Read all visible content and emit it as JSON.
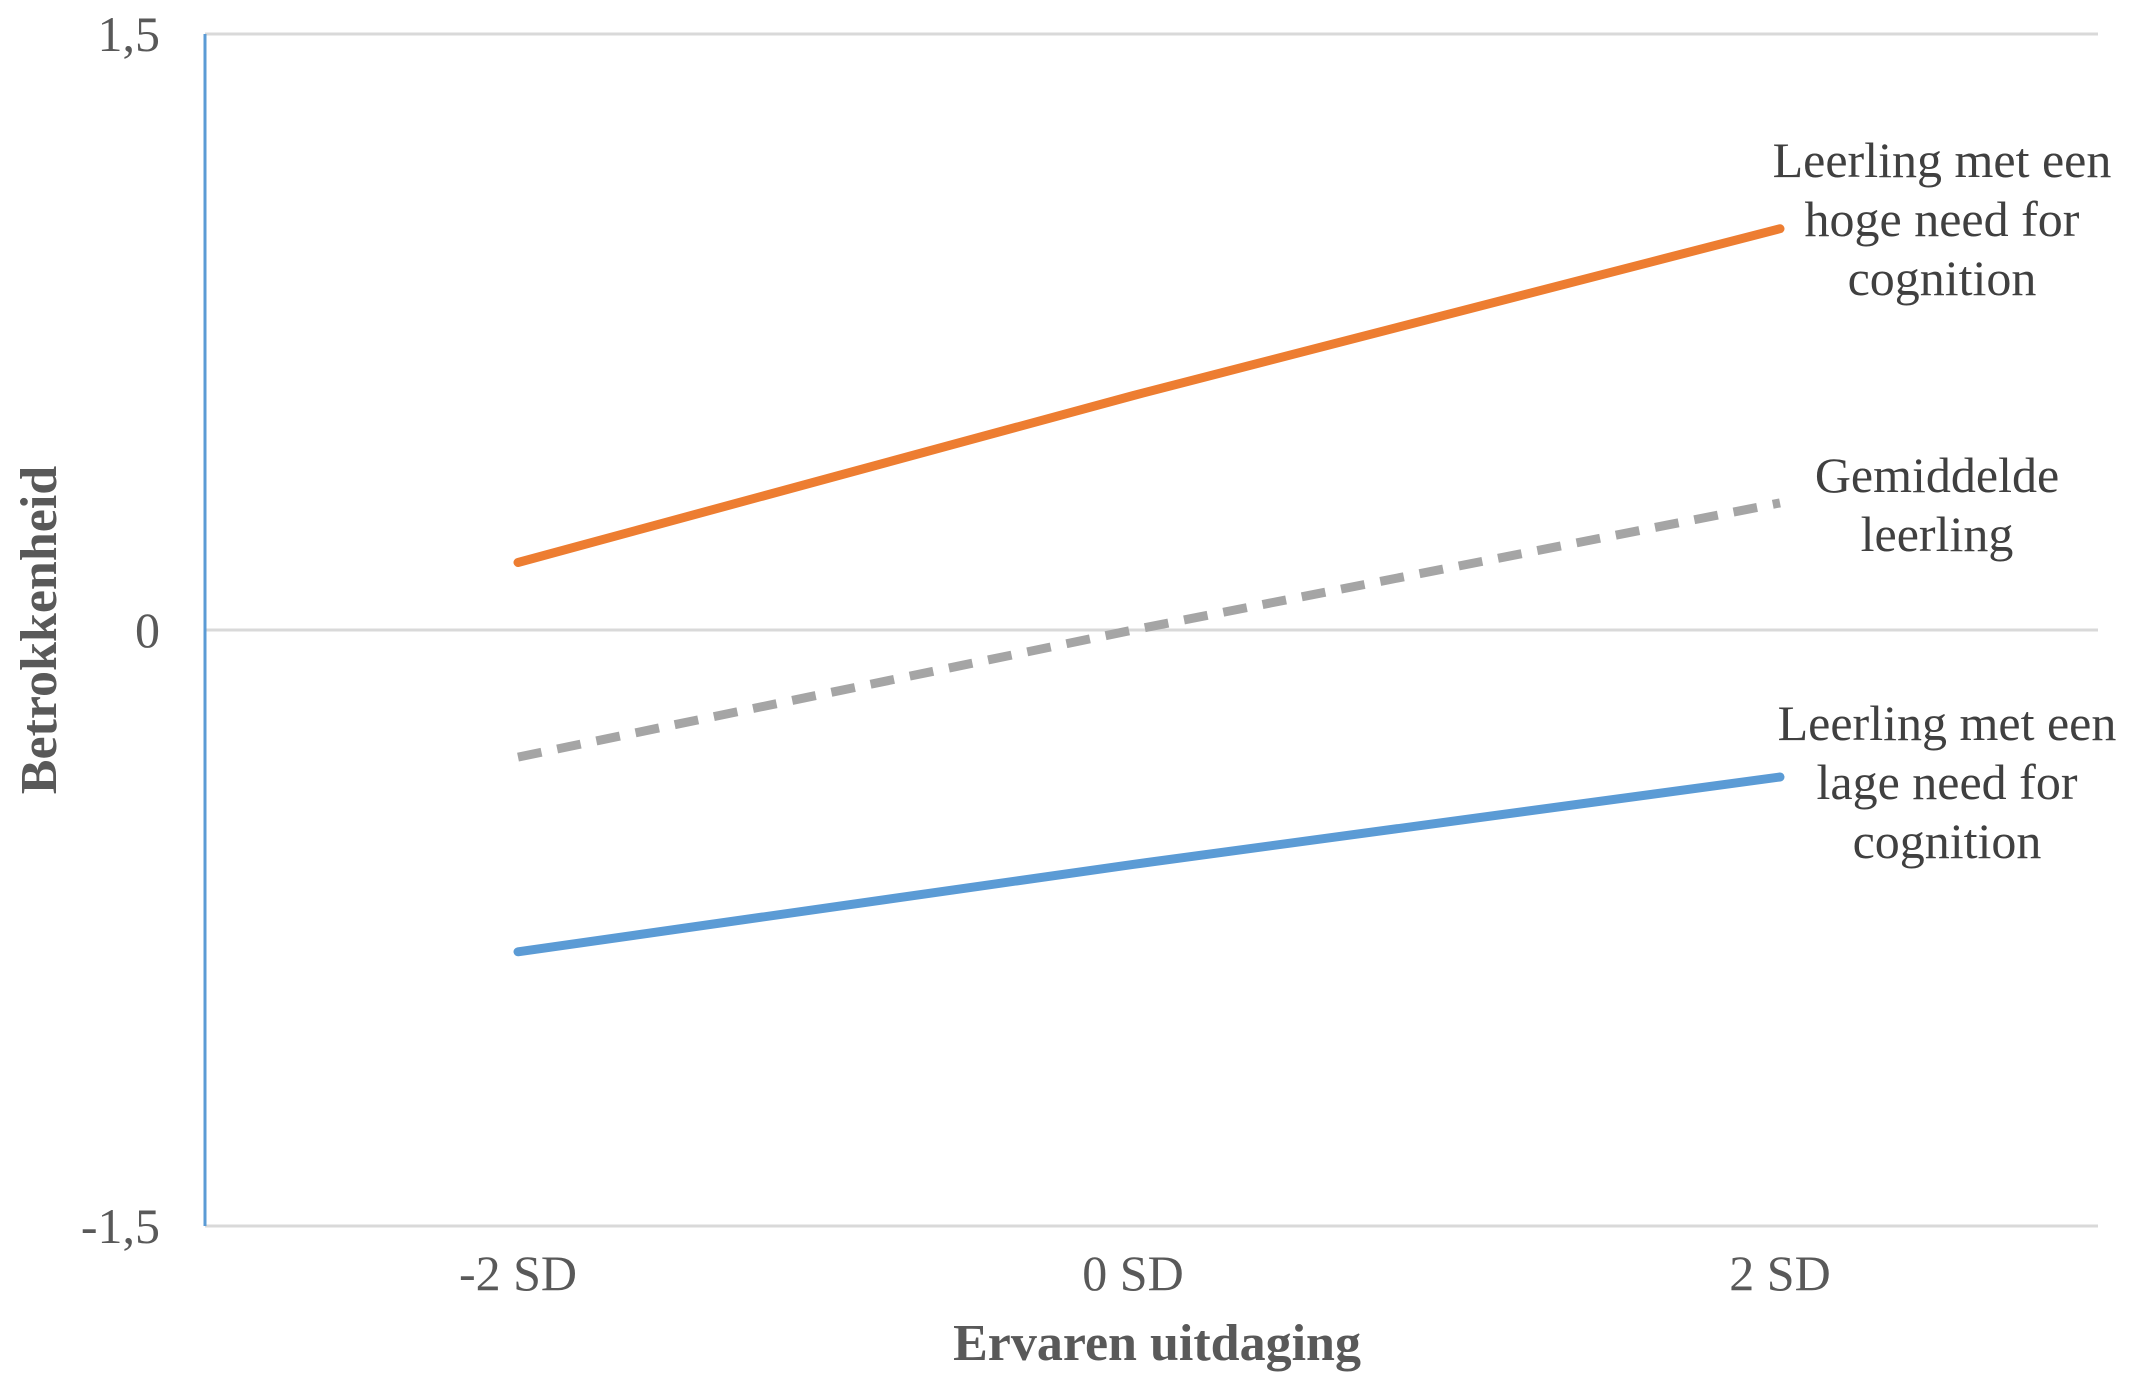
{
  "chart_data": {
    "type": "line",
    "categories": [
      "-2 SD",
      "0 SD",
      "2 SD"
    ],
    "x": [
      -2,
      0,
      2
    ],
    "xlabel": "Ervaren uitdaging",
    "ylabel": "Betrokkenheid",
    "ylim": [
      -1.5,
      1.5
    ],
    "yticks": [
      -1.5,
      0,
      1.5
    ],
    "ytick_labels": [
      "-1,5",
      "0",
      "1,5"
    ],
    "grid": "horizontal",
    "legend": "none",
    "series": [
      {
        "name": "Leerling met een hoge need for cognition",
        "label_lines": [
          "Leerling met een",
          "hoge need for",
          "cognition"
        ],
        "values": [
          0.17,
          0.59,
          1.01
        ],
        "color": "#ED7D31",
        "dashed": false
      },
      {
        "name": "Gemiddelde leerling",
        "label_lines": [
          "Gemiddelde",
          "leerling"
        ],
        "values": [
          -0.32,
          0.0,
          0.32
        ],
        "color": "#A5A5A5",
        "dashed": true
      },
      {
        "name": "Leerling met een lage need for cognition",
        "label_lines": [
          "Leerling met een",
          "lage need for",
          "cognition"
        ],
        "values": [
          -0.81,
          -0.59,
          -0.37
        ],
        "color": "#5B9BD5",
        "dashed": false
      }
    ]
  }
}
